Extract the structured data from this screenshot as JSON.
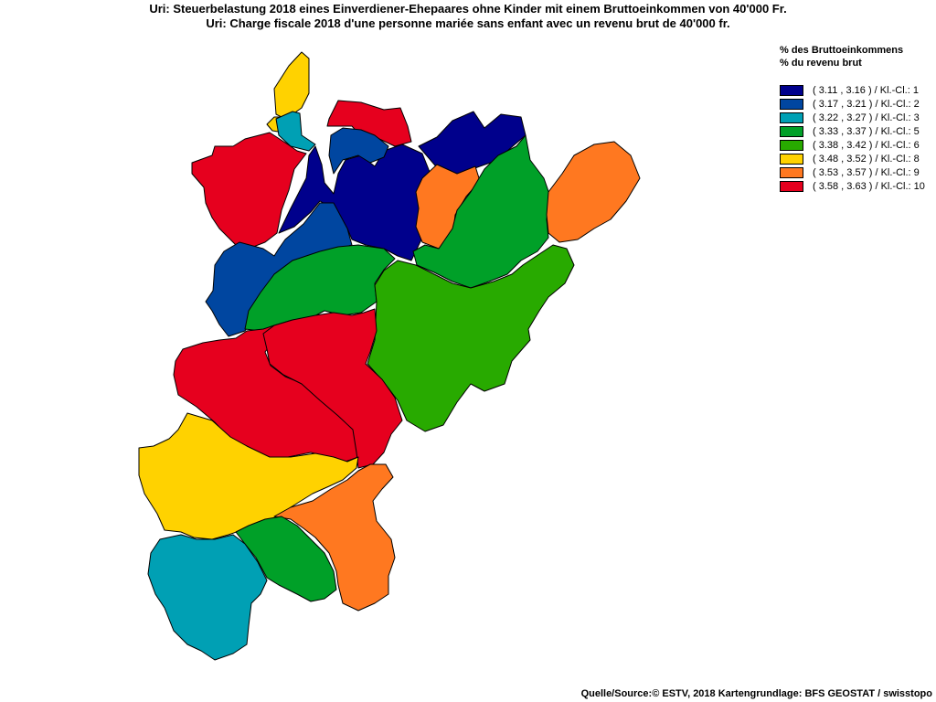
{
  "title_de": "Uri: Steuerbelastung 2018 eines Einverdiener-Ehepaares ohne Kinder mit einem Bruttoeinkommen von 40'000 Fr.",
  "title_fr": "Uri: Charge fiscale 2018 d'une personne mariée sans enfant avec un revenu brut de 40'000 fr.",
  "legend": {
    "heading_de": "% des Bruttoeinkommens",
    "heading_fr": "% du revenu brut",
    "classes": [
      {
        "label": "( 3.11 , 3.16 ) / Kl.-Cl.: 1",
        "color": "#00008c"
      },
      {
        "label": "( 3.17 , 3.21 ) / Kl.-Cl.: 2",
        "color": "#0046a0"
      },
      {
        "label": "( 3.22 , 3.27 ) / Kl.-Cl.: 3",
        "color": "#00a0b4"
      },
      {
        "label": "( 3.33 , 3.37 ) / Kl.-Cl.: 5",
        "color": "#00a028"
      },
      {
        "label": "( 3.38 , 3.42 ) / Kl.-Cl.: 6",
        "color": "#28aa00"
      },
      {
        "label": "( 3.48 , 3.52 ) / Kl.-Cl.: 8",
        "color": "#ffd200"
      },
      {
        "label": "( 3.53 , 3.57 ) / Kl.-Cl.: 9",
        "color": "#ff7820"
      },
      {
        "label": "( 3.58 , 3.63 ) / Kl.-Cl.: 10",
        "color": "#e6001e"
      }
    ]
  },
  "source": "Quelle/Source:© ESTV, 2018 Kartengrundlage: BFS GEOSTAT / swisstopo"
}
